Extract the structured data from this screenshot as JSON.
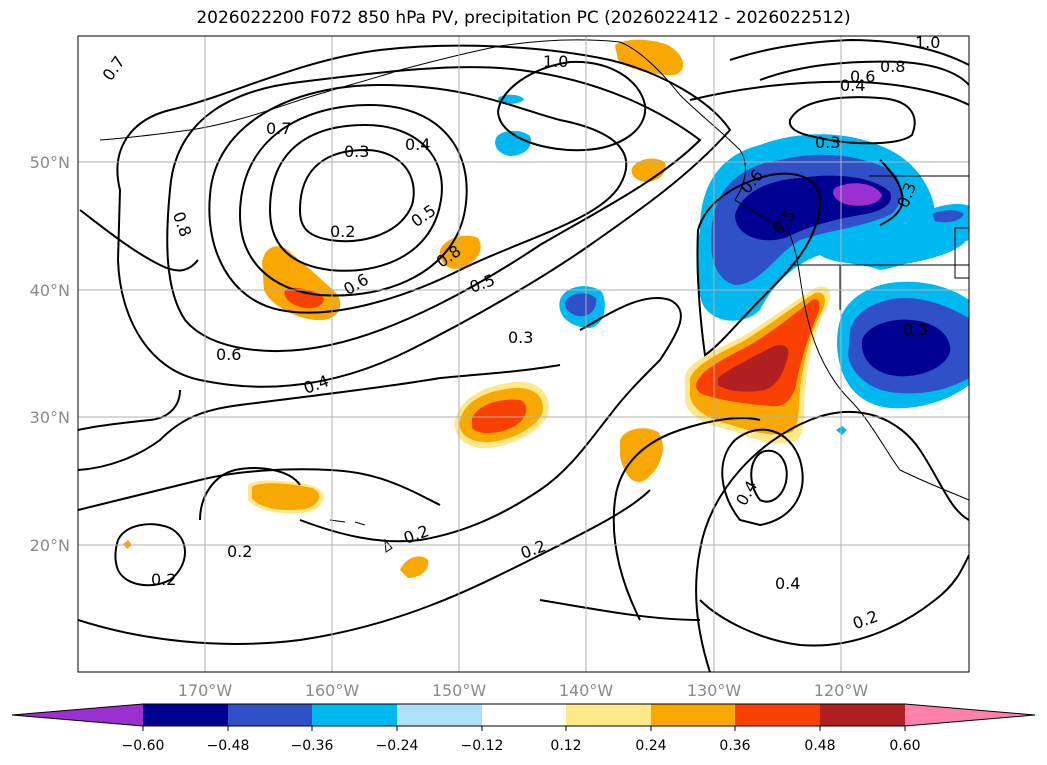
{
  "title": "2026022200 F072 850 hPa PV, precipitation PC (2026022412 - 2026022512)",
  "lat_ticks": [
    "50°N",
    "40°N",
    "30°N",
    "20°N"
  ],
  "lon_ticks": [
    "170°W",
    "160°W",
    "150°W",
    "140°W",
    "130°W",
    "120°W"
  ],
  "contour_labels": [
    "0.7",
    "1.0",
    "1.0",
    "0.8",
    "0.6",
    "0.4",
    "0.7",
    "0.3",
    "0.4",
    "0.3",
    "0.8",
    "0.2",
    "0.5",
    "0.8",
    "0.6",
    "0.5",
    "0.6",
    "0.3",
    "0.4",
    "0.3",
    "0.6",
    "0.5",
    "0.2",
    "0.2",
    "0.2",
    "0.4",
    "0.2",
    "0.3",
    "0.2",
    "0.4"
  ],
  "colorbar": {
    "tick_labels": [
      "−0.60",
      "−0.48",
      "−0.36",
      "−0.24",
      "−0.12",
      "0.12",
      "0.24",
      "0.36",
      "0.48",
      "0.60"
    ],
    "colors": [
      "#9b30d0",
      "#000090",
      "#3050c8",
      "#00b8f0",
      "#aee0f8",
      "#ffffff",
      "#fde88a",
      "#f8a800",
      "#f84000",
      "#b02020",
      "#ff80a8"
    ]
  }
}
